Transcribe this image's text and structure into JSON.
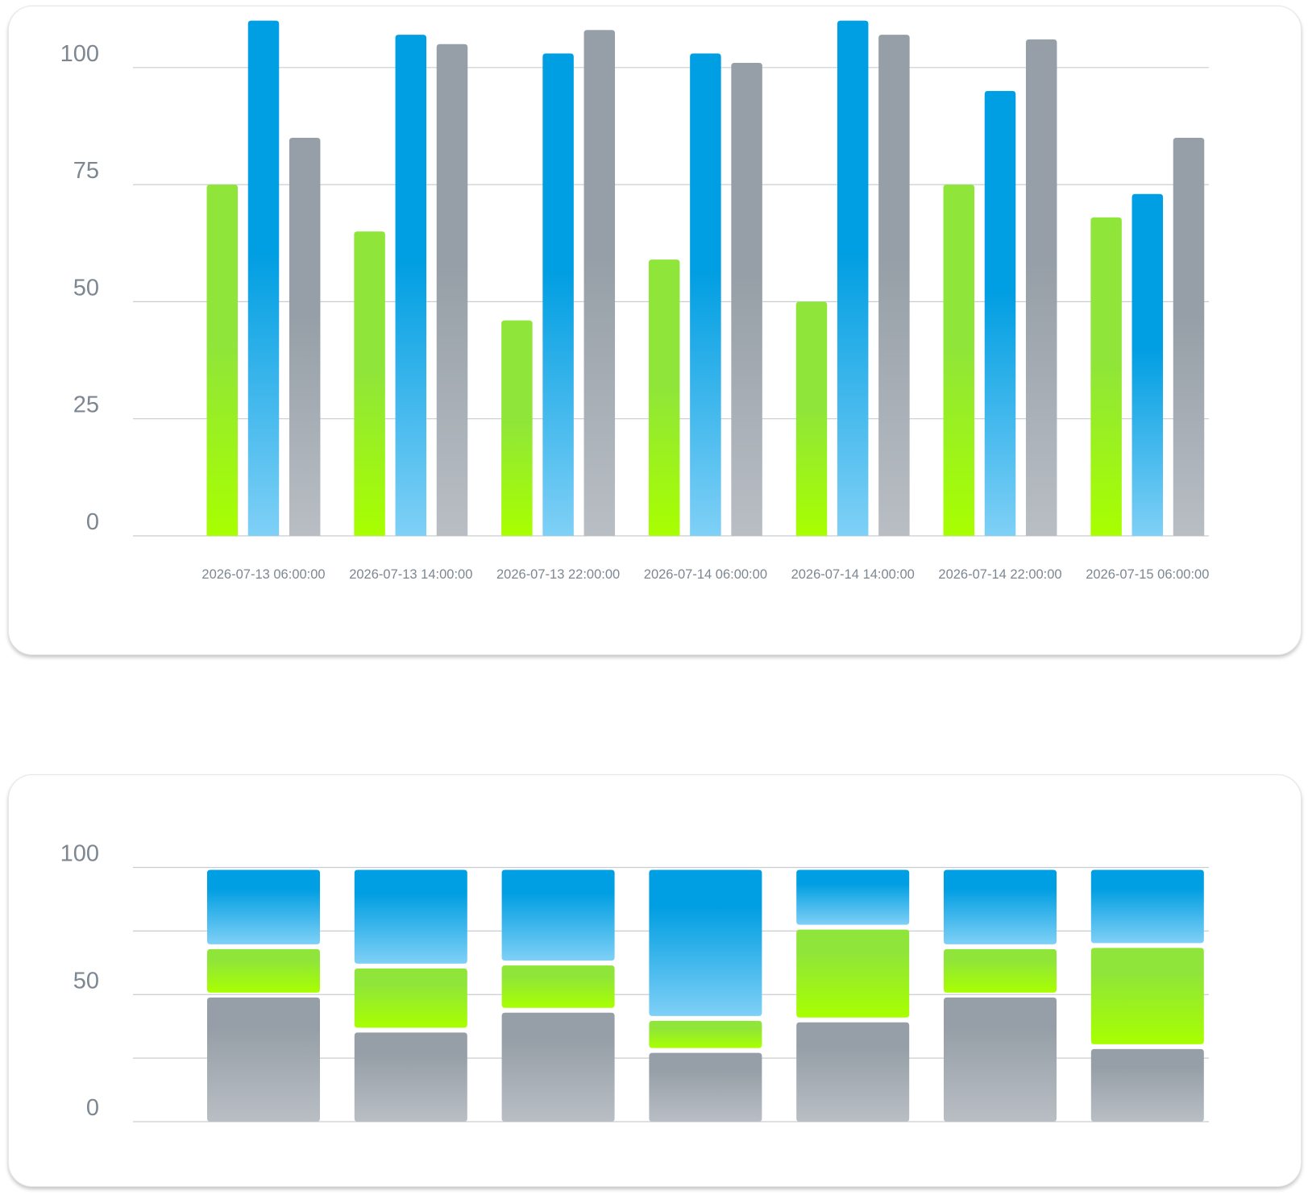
{
  "colors": {
    "green": "#8fe53a",
    "blue": "#009ee2",
    "gray": "#969fa7"
  },
  "chart_data": [
    {
      "type": "bar",
      "variant": "grouped",
      "categories": [
        "2026-07-13 06:00:00",
        "2026-07-13 14:00:00",
        "2026-07-13 22:00:00",
        "2026-07-14 06:00:00",
        "2026-07-14 14:00:00",
        "2026-07-14 22:00:00",
        "2026-07-15 06:00:00"
      ],
      "series": [
        {
          "color": "green",
          "values": [
            75,
            65,
            46,
            59,
            50,
            75,
            68
          ]
        },
        {
          "color": "blue",
          "values": [
            110,
            107,
            103,
            103,
            110,
            95,
            73
          ]
        },
        {
          "color": "gray",
          "values": [
            85,
            105,
            108,
            101,
            107,
            106,
            85
          ]
        }
      ],
      "y_ticks": [
        "0",
        "25",
        "50",
        "75",
        "100"
      ],
      "ylim": [
        0,
        112
      ],
      "grid": true,
      "legend": "none"
    },
    {
      "type": "bar",
      "variant": "stacked-percent",
      "categories": [
        "2026-07-13 06:00:00",
        "2026-07-13 14:00:00",
        "2026-07-13 22:00:00",
        "2026-07-14 06:00:00",
        "2026-07-14 14:00:00",
        "2026-07-14 22:00:00",
        "2026-07-15 06:00:00"
      ],
      "series": [
        {
          "color": "gray",
          "values": [
            49.8,
            36,
            43.8,
            28,
            40,
            49.8,
            29.5
          ]
        },
        {
          "color": "green",
          "values": [
            19,
            25.2,
            18.6,
            12.6,
            36.5,
            19,
            39.8
          ]
        },
        {
          "color": "blue",
          "values": [
            31.2,
            38.8,
            37.6,
            59.4,
            23.5,
            31.2,
            30.7
          ]
        }
      ],
      "y_ticks": [
        "0",
        "50",
        "100"
      ],
      "ylim": [
        0,
        100
      ],
      "grid": true,
      "legend": "none",
      "x_tick_labels_visible": false
    }
  ]
}
